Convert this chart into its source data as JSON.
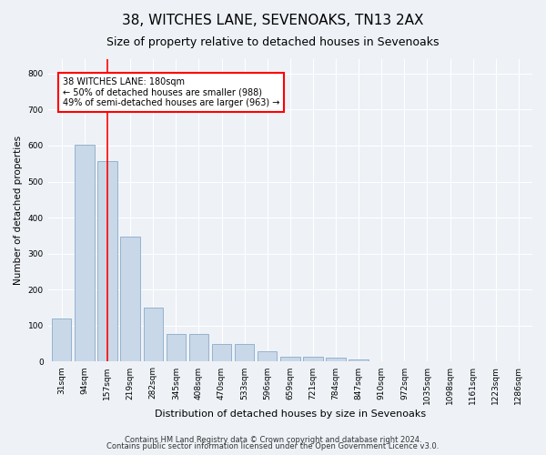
{
  "title": "38, WITCHES LANE, SEVENOAKS, TN13 2AX",
  "subtitle": "Size of property relative to detached houses in Sevenoaks",
  "xlabel": "Distribution of detached houses by size in Sevenoaks",
  "ylabel": "Number of detached properties",
  "categories": [
    "31sqm",
    "94sqm",
    "157sqm",
    "219sqm",
    "282sqm",
    "345sqm",
    "408sqm",
    "470sqm",
    "533sqm",
    "596sqm",
    "659sqm",
    "721sqm",
    "784sqm",
    "847sqm",
    "910sqm",
    "972sqm",
    "1035sqm",
    "1098sqm",
    "1161sqm",
    "1223sqm",
    "1286sqm"
  ],
  "values": [
    120,
    602,
    558,
    347,
    150,
    77,
    77,
    50,
    50,
    30,
    15,
    13,
    12,
    5,
    0,
    0,
    0,
    0,
    0,
    0,
    0
  ],
  "bar_color": "#c8d8e8",
  "bar_edge_color": "#8aaac8",
  "vline_x_index": 2,
  "vline_color": "red",
  "annotation_text": "38 WITCHES LANE: 180sqm\n← 50% of detached houses are smaller (988)\n49% of semi-detached houses are larger (963) →",
  "annotation_box_color": "white",
  "annotation_box_edge_color": "red",
  "ylim": [
    0,
    840
  ],
  "yticks": [
    0,
    100,
    200,
    300,
    400,
    500,
    600,
    700,
    800
  ],
  "footer1": "Contains HM Land Registry data © Crown copyright and database right 2024.",
  "footer2": "Contains public sector information licensed under the Open Government Licence v3.0.",
  "background_color": "#eef2f7",
  "grid_color": "white",
  "title_fontsize": 11,
  "subtitle_fontsize": 9,
  "xlabel_fontsize": 8,
  "ylabel_fontsize": 7.5,
  "tick_fontsize": 6.5,
  "annotation_fontsize": 7,
  "footer_fontsize": 6
}
